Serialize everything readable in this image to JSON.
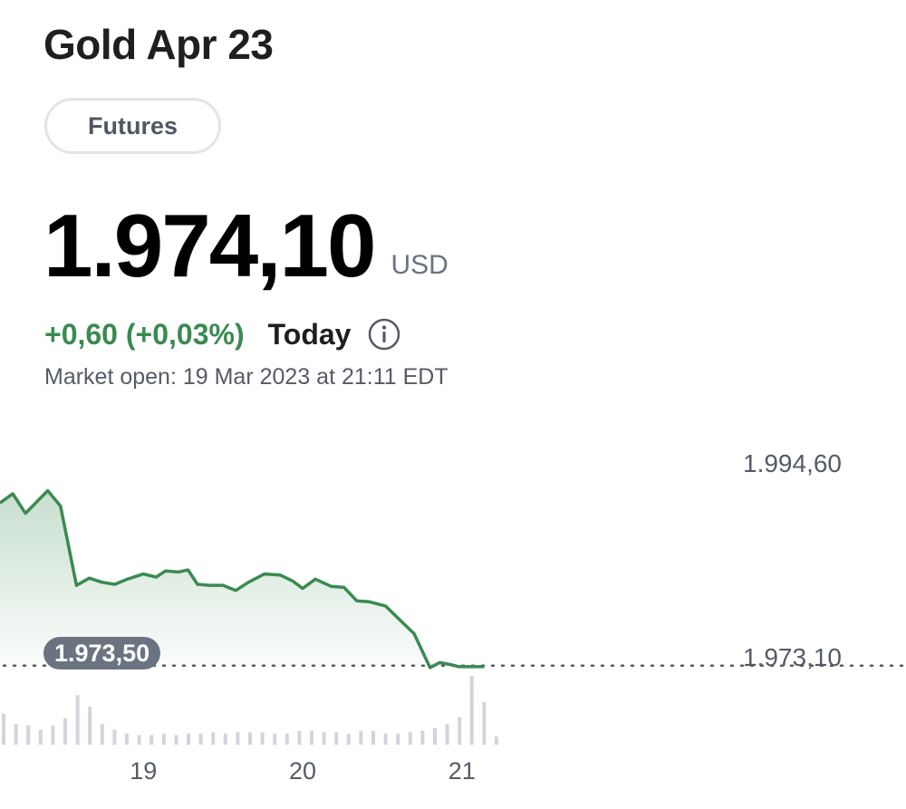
{
  "header": {
    "title": "Gold Apr 23",
    "tag_label": "Futures"
  },
  "quote": {
    "price": "1.974,10",
    "currency": "USD",
    "change": "+0,60 (+0,03%)",
    "period_label": "Today",
    "market_status": "Market open: 19 Mar 2023 at 21:11 EDT"
  },
  "colors": {
    "positive": "#3a8a52",
    "line": "#3a8a52",
    "badge": "#6b7280",
    "volume": "#d1d5db"
  },
  "icons": {
    "info": "info-circle-icon"
  },
  "chart_data": {
    "type": "area",
    "y_axis_labels": [
      "1.994,60",
      "1.973,10"
    ],
    "ylim": [
      1970.4,
      1996.8
    ],
    "previous_close_label": "1.973,50",
    "previous_close_value": 1973.5,
    "x_tick_labels": [
      "19",
      "20",
      "21"
    ],
    "xlim": [
      18.1,
      21.2
    ],
    "x_ticks": [
      19,
      20,
      21
    ],
    "grid": false,
    "series": [
      {
        "x": [
          18.1,
          18.18,
          18.26,
          18.4,
          18.48,
          18.58,
          18.66,
          18.74,
          18.82,
          18.9,
          19.0,
          19.08,
          19.14,
          19.22,
          19.28,
          19.34,
          19.42,
          19.5,
          19.58,
          19.66,
          19.76,
          19.86,
          19.94,
          20.0,
          20.08,
          20.18,
          20.26,
          20.34,
          20.42,
          20.52,
          20.6,
          20.7,
          20.8,
          20.86,
          20.93,
          20.98,
          21.03,
          21.08,
          21.14
        ],
        "values": [
          1989.3,
          1990.2,
          1988.3,
          1990.5,
          1989.0,
          1981.3,
          1982.0,
          1981.6,
          1981.4,
          1981.9,
          1982.4,
          1982.1,
          1982.7,
          1982.6,
          1982.8,
          1981.4,
          1981.3,
          1981.3,
          1980.8,
          1981.6,
          1982.4,
          1982.3,
          1981.7,
          1981.0,
          1981.9,
          1981.2,
          1981.1,
          1979.8,
          1979.7,
          1979.3,
          1978.1,
          1976.6,
          1973.3,
          1973.8,
          1973.6,
          1973.4,
          1973.4,
          1973.4,
          1973.4
        ]
      }
    ],
    "volume": [
      0.45,
      0.3,
      0.28,
      0.22,
      0.28,
      0.38,
      0.72,
      0.55,
      0.3,
      0.22,
      0.16,
      0.14,
      0.14,
      0.16,
      0.14,
      0.16,
      0.16,
      0.18,
      0.16,
      0.18,
      0.18,
      0.18,
      0.16,
      0.16,
      0.2,
      0.2,
      0.18,
      0.18,
      0.16,
      0.2,
      0.2,
      0.16,
      0.16,
      0.18,
      0.2,
      0.24,
      0.3,
      0.4,
      1.0,
      0.62,
      0.12
    ]
  }
}
